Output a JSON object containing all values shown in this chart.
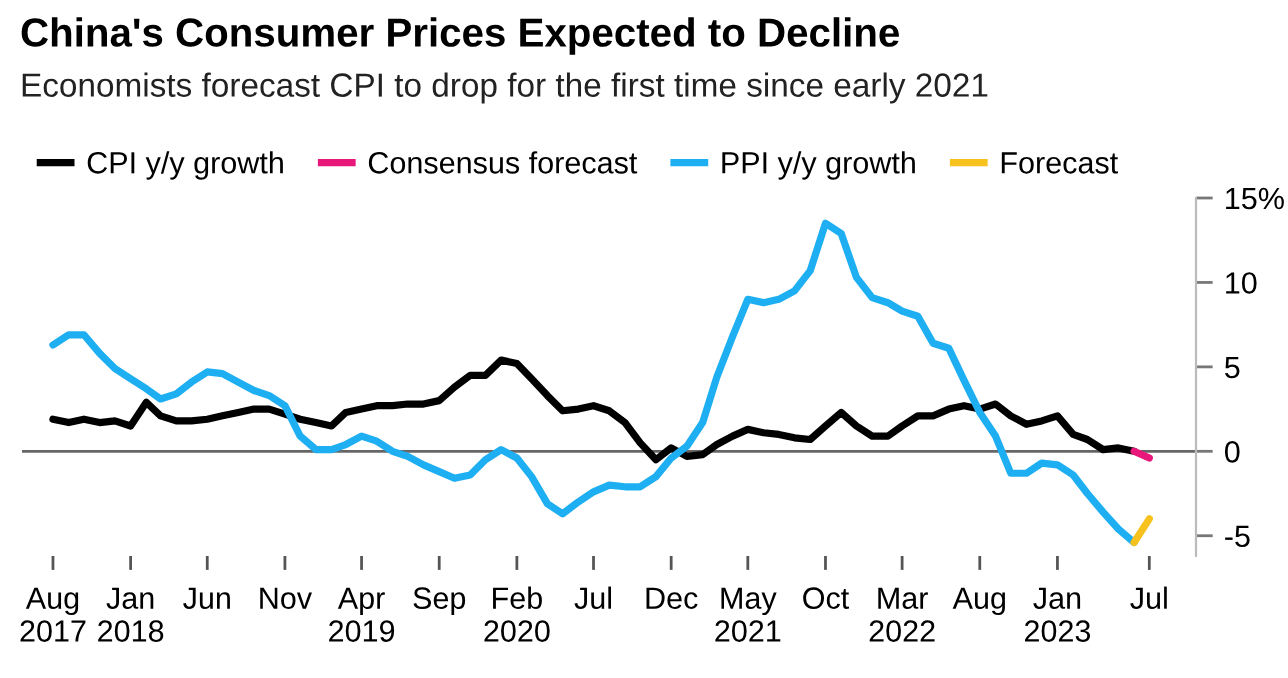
{
  "chart_data": {
    "type": "line",
    "title": "China's Consumer Prices Expected to Decline",
    "subtitle": "Economists forecast CPI to drop for the first time since early 2021",
    "x": [
      "2017-08",
      "2017-09",
      "2017-10",
      "2017-11",
      "2017-12",
      "2018-01",
      "2018-02",
      "2018-03",
      "2018-04",
      "2018-05",
      "2018-06",
      "2018-07",
      "2018-08",
      "2018-09",
      "2018-10",
      "2018-11",
      "2018-12",
      "2019-01",
      "2019-02",
      "2019-03",
      "2019-04",
      "2019-05",
      "2019-06",
      "2019-07",
      "2019-08",
      "2019-09",
      "2019-10",
      "2019-11",
      "2019-12",
      "2020-01",
      "2020-02",
      "2020-03",
      "2020-04",
      "2020-05",
      "2020-06",
      "2020-07",
      "2020-08",
      "2020-09",
      "2020-10",
      "2020-11",
      "2020-12",
      "2021-01",
      "2021-02",
      "2021-03",
      "2021-04",
      "2021-05",
      "2021-06",
      "2021-07",
      "2021-08",
      "2021-09",
      "2021-10",
      "2021-11",
      "2021-12",
      "2022-01",
      "2022-02",
      "2022-03",
      "2022-04",
      "2022-05",
      "2022-06",
      "2022-07",
      "2022-08",
      "2022-09",
      "2022-10",
      "2022-11",
      "2022-12",
      "2023-01",
      "2023-02",
      "2023-03",
      "2023-04",
      "2023-05",
      "2023-06"
    ],
    "series": [
      {
        "name": "CPI y/y growth",
        "color": "#000000",
        "values": [
          1.9,
          1.7,
          1.9,
          1.7,
          1.8,
          1.5,
          2.9,
          2.1,
          1.8,
          1.8,
          1.9,
          2.1,
          2.3,
          2.5,
          2.5,
          2.2,
          1.9,
          1.7,
          1.5,
          2.3,
          2.5,
          2.7,
          2.7,
          2.8,
          2.8,
          3.0,
          3.8,
          4.5,
          4.5,
          5.4,
          5.2,
          4.3,
          3.3,
          2.4,
          2.5,
          2.7,
          2.4,
          1.7,
          0.5,
          -0.5,
          0.2,
          -0.3,
          -0.2,
          0.4,
          0.9,
          1.3,
          1.1,
          1.0,
          0.8,
          0.7,
          1.5,
          2.3,
          1.5,
          0.9,
          0.9,
          1.5,
          2.1,
          2.1,
          2.5,
          2.7,
          2.5,
          2.8,
          2.1,
          1.6,
          1.8,
          2.1,
          1.0,
          0.7,
          0.1,
          0.2,
          0.0
        ]
      },
      {
        "name": "Consensus forecast",
        "color": "#e8187a",
        "x": [
          "2023-06",
          "2023-07"
        ],
        "values": [
          0.0,
          -0.4
        ]
      },
      {
        "name": "PPI y/y growth",
        "color": "#1eaef2",
        "values": [
          6.3,
          6.9,
          6.9,
          5.8,
          4.9,
          4.3,
          3.7,
          3.1,
          3.4,
          4.1,
          4.7,
          4.6,
          4.1,
          3.6,
          3.3,
          2.7,
          0.9,
          0.1,
          0.1,
          0.4,
          0.9,
          0.6,
          0.0,
          -0.3,
          -0.8,
          -1.2,
          -1.6,
          -1.4,
          -0.5,
          0.1,
          -0.4,
          -1.5,
          -3.1,
          -3.7,
          -3.0,
          -2.4,
          -2.0,
          -2.1,
          -2.1,
          -1.5,
          -0.4,
          0.3,
          1.7,
          4.4,
          6.8,
          9.0,
          8.8,
          9.0,
          9.5,
          10.7,
          13.5,
          12.9,
          10.3,
          9.1,
          8.8,
          8.3,
          8.0,
          6.4,
          6.1,
          4.2,
          2.3,
          0.9,
          -1.3,
          -1.3,
          -0.7,
          -0.8,
          -1.4,
          -2.5,
          -3.6,
          -4.6,
          -5.4
        ]
      },
      {
        "name": "Forecast",
        "color": "#f7c21e",
        "x": [
          "2023-06",
          "2023-07"
        ],
        "values": [
          -5.4,
          -4.0
        ]
      }
    ],
    "xlim": [
      "2017-06",
      "2023-10"
    ],
    "xticks": [
      {
        "value": "2017-08",
        "label": "Aug\n2017"
      },
      {
        "value": "2018-01",
        "label": "Jan\n2018"
      },
      {
        "value": "2018-06",
        "label": "Jun"
      },
      {
        "value": "2018-11",
        "label": "Nov"
      },
      {
        "value": "2019-04",
        "label": "Apr\n2019"
      },
      {
        "value": "2019-09",
        "label": "Sep"
      },
      {
        "value": "2020-02",
        "label": "Feb\n2020"
      },
      {
        "value": "2020-07",
        "label": "Jul"
      },
      {
        "value": "2020-12",
        "label": "Dec"
      },
      {
        "value": "2021-05",
        "label": "May\n2021"
      },
      {
        "value": "2021-10",
        "label": "Oct"
      },
      {
        "value": "2022-03",
        "label": "Mar\n2022"
      },
      {
        "value": "2022-08",
        "label": "Aug"
      },
      {
        "value": "2023-01",
        "label": "Jan\n2023"
      },
      {
        "value": "2023-07",
        "label": "Jul"
      }
    ],
    "ylim": [
      -6.2,
      15
    ],
    "yticks": [
      -5,
      0,
      5,
      10,
      {
        "value": 15,
        "label": "15%"
      }
    ],
    "ref_lines": [
      {
        "axis": "y",
        "value": 0,
        "color": "#666666"
      }
    ],
    "legend": "top left",
    "grid": false,
    "marker": "none",
    "line_style": "solid"
  }
}
